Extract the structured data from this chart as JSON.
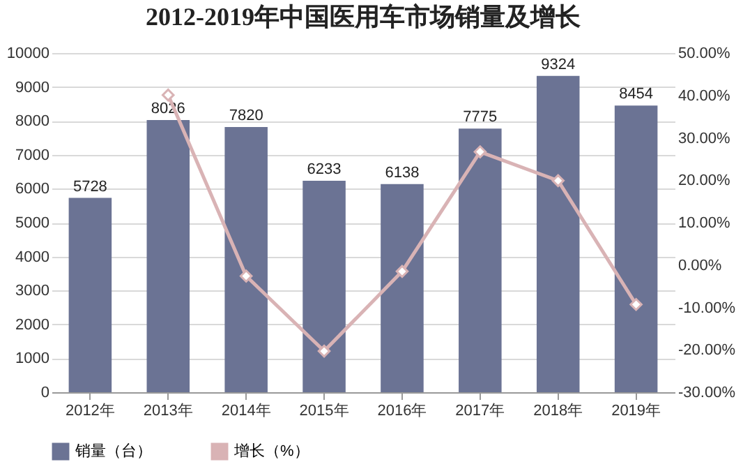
{
  "chart_data": {
    "type": "bar",
    "title": "2012-2019年中国医用车市场销量及增长",
    "categories": [
      "2012年",
      "2013年",
      "2014年",
      "2015年",
      "2016年",
      "2017年",
      "2018年",
      "2019年"
    ],
    "series": [
      {
        "name": "销量（台）",
        "color": "#6b7394",
        "values": [
          5728,
          8026,
          7820,
          6233,
          6138,
          7775,
          9324,
          8454
        ],
        "value_labels": [
          "5728",
          "8026",
          "7820",
          "6233",
          "6138",
          "7775",
          "9324",
          "8454"
        ]
      },
      {
        "name": "增长（%）",
        "type": "line",
        "axis": "y2",
        "color": "#d9b3b5",
        "marker": "diamond",
        "values": [
          null,
          40.1,
          -2.6,
          -20.3,
          -1.5,
          26.7,
          19.9,
          -9.3
        ]
      }
    ],
    "ylim": [
      0,
      10000
    ],
    "yticks": [
      0,
      1000,
      2000,
      3000,
      4000,
      5000,
      6000,
      7000,
      8000,
      9000,
      10000
    ],
    "y2lim": [
      -30,
      50
    ],
    "y2ticks": [
      {
        "value": -30,
        "label": "-30.00%"
      },
      {
        "value": -20,
        "label": "-20.00%"
      },
      {
        "value": -10,
        "label": "-10.00%"
      },
      {
        "value": 0,
        "label": "0.00%"
      },
      {
        "value": 10,
        "label": "10.00%"
      },
      {
        "value": 20,
        "label": "20.00%"
      },
      {
        "value": 30,
        "label": "30.00%"
      },
      {
        "value": 40,
        "label": "40.00%"
      },
      {
        "value": 50,
        "label": "50.00%"
      }
    ],
    "grid": "y",
    "legend": "bottom"
  }
}
